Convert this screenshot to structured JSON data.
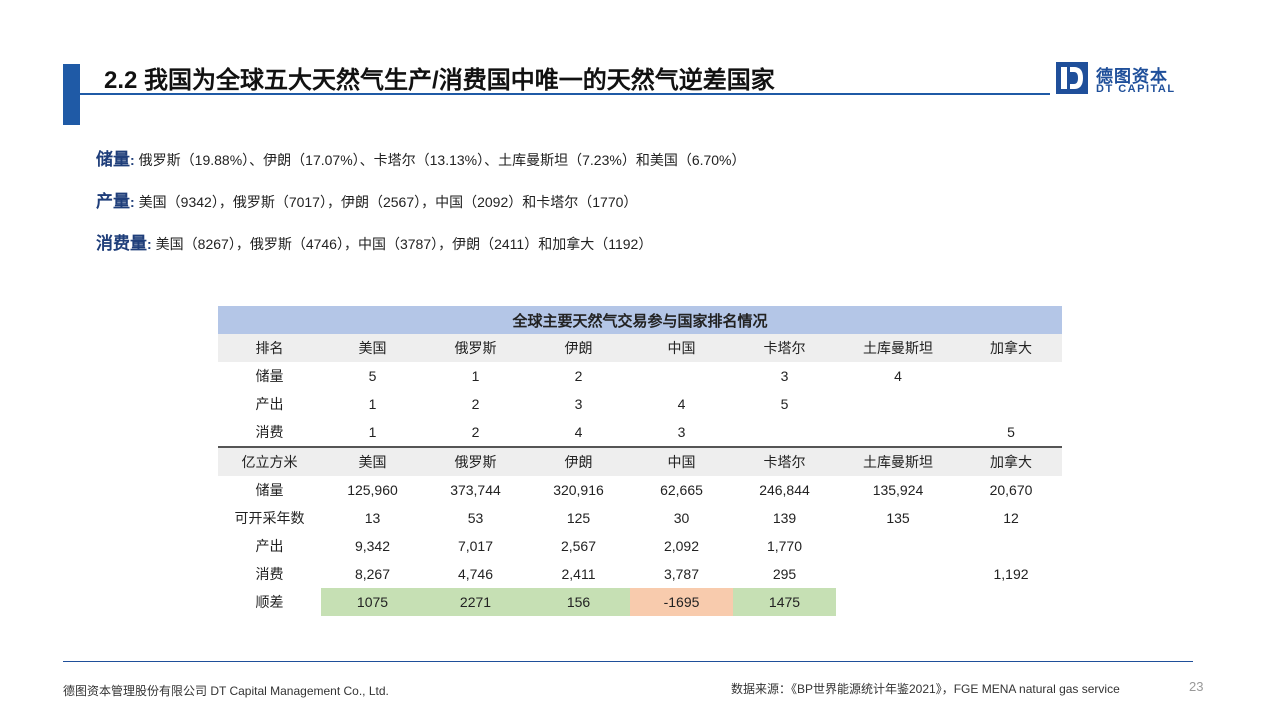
{
  "title": "2.2 我国为全球五大天然气生产/消费国中唯一的天然气逆差国家",
  "logo": {
    "cn": "德图资本",
    "en": "DT CAPITAL"
  },
  "brand_colors": {
    "primary": "#1f5aa6",
    "header_fill": "#b4c6e7",
    "positive_fill": "#c6e0b4",
    "negative_fill": "#f8cbad"
  },
  "stats": [
    {
      "label": "储量",
      "text": "俄罗斯（19.88%）、伊朗（17.07%）、卡塔尔（13.13%）、土库曼斯坦（7.23%）和美国（6.70%）"
    },
    {
      "label": "产量",
      "text": "美国（9342），俄罗斯（7017），伊朗（2567），中国（2092）和卡塔尔（1770）"
    },
    {
      "label": "消费量",
      "text": "美国（8267），俄罗斯（4746），中国（3787），伊朗（2411）和加拿大（1192）"
    }
  ],
  "table": {
    "caption": "全球主要天然气交易参与国家排名情况",
    "rank_header": [
      "排名",
      "美国",
      "俄罗斯",
      "伊朗",
      "中国",
      "卡塔尔",
      "土库曼斯坦",
      "加拿大"
    ],
    "rank_rows": [
      [
        "储量",
        "5",
        "1",
        "2",
        "",
        "3",
        "4",
        ""
      ],
      [
        "产出",
        "1",
        "2",
        "3",
        "4",
        "5",
        "",
        ""
      ],
      [
        "消费",
        "1",
        "2",
        "4",
        "3",
        "",
        "",
        "5"
      ]
    ],
    "volume_header": [
      "亿立方米",
      "美国",
      "俄罗斯",
      "伊朗",
      "中国",
      "卡塔尔",
      "土库曼斯坦",
      "加拿大"
    ],
    "volume_rows": [
      [
        "储量",
        "125,960",
        "373,744",
        "320,916",
        "62,665",
        "246,844",
        "135,924",
        "20,670"
      ],
      [
        "可开采年数",
        "13",
        "53",
        "125",
        "30",
        "139",
        "135",
        "12"
      ],
      [
        "产出",
        "9,342",
        "7,017",
        "2,567",
        "2,092",
        "1,770",
        "",
        ""
      ],
      [
        "消费",
        "8,267",
        "4,746",
        "2,411",
        "3,787",
        "295",
        "",
        "1,192"
      ],
      [
        "顺差",
        "1075",
        "2271",
        "156",
        "-1695",
        "1475",
        "",
        ""
      ]
    ]
  },
  "footer": {
    "company": "德图资本管理股份有限公司  DT Capital  Management  Co., Ltd.",
    "source": "数据来源：《BP世界能源统计年鉴2021》，FGE  MENA natural gas service",
    "page": "23"
  }
}
